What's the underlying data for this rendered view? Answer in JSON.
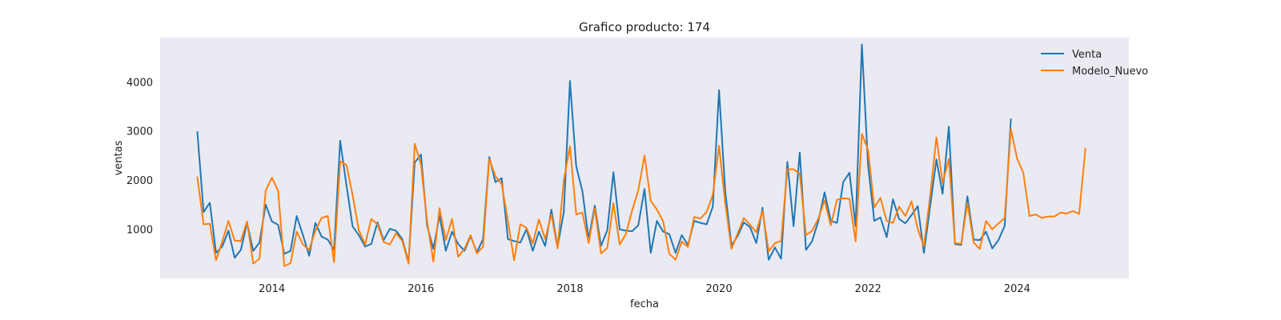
{
  "chart_data": {
    "type": "line",
    "title": "Grafico producto: 174",
    "xlabel": "fecha",
    "ylabel": "ventas",
    "xlim": [
      "2012-07-01",
      "2025-07-01"
    ],
    "ylim": [
      0,
      4900
    ],
    "x_ticks": [
      "2014",
      "2016",
      "2018",
      "2020",
      "2022",
      "2024"
    ],
    "y_ticks": [
      1000,
      2000,
      3000,
      4000
    ],
    "grid": false,
    "legend_position": "top-right",
    "background": "#eaeaf2",
    "series": [
      {
        "name": "Venta",
        "color": "#1f77b4",
        "start": "2013-01",
        "values": [
          2980,
          1350,
          1540,
          520,
          650,
          970,
          420,
          580,
          1130,
          560,
          730,
          1500,
          1160,
          1090,
          500,
          560,
          1270,
          880,
          460,
          1130,
          850,
          790,
          580,
          2800,
          1900,
          1060,
          880,
          650,
          700,
          1140,
          780,
          1010,
          970,
          800,
          330,
          2360,
          2520,
          1070,
          600,
          1280,
          560,
          950,
          700,
          560,
          860,
          530,
          800,
          2470,
          1960,
          2040,
          800,
          760,
          730,
          1000,
          560,
          950,
          660,
          1400,
          640,
          1350,
          4020,
          2280,
          1780,
          800,
          1480,
          660,
          980,
          2160,
          1000,
          970,
          960,
          1080,
          1820,
          520,
          1170,
          950,
          900,
          520,
          880,
          680,
          1170,
          1130,
          1100,
          1460,
          3830,
          1780,
          670,
          860,
          1140,
          1040,
          720,
          1440,
          380,
          630,
          400,
          2370,
          1060,
          2560,
          580,
          760,
          1170,
          1750,
          1170,
          1130,
          1960,
          2150,
          1060,
          4760,
          2310,
          1170,
          1240,
          840,
          1610,
          1210,
          1120,
          1290,
          1470,
          520,
          1470,
          2420,
          1720,
          3090,
          700,
          680,
          1670,
          790,
          780,
          950,
          610,
          780,
          1070,
          3240
        ]
      },
      {
        "name": "Modelo_Nuevo",
        "color": "#ff7f0e",
        "start": "2013-01",
        "values": [
          2060,
          1100,
          1110,
          370,
          750,
          1170,
          770,
          760,
          1160,
          300,
          400,
          1790,
          2050,
          1780,
          250,
          310,
          950,
          690,
          580,
          970,
          1230,
          1270,
          330,
          2380,
          2310,
          1700,
          980,
          690,
          1210,
          1100,
          740,
          690,
          920,
          760,
          300,
          2740,
          2320,
          1160,
          340,
          1430,
          780,
          1210,
          440,
          600,
          880,
          510,
          640,
          2430,
          2080,
          1920,
          1170,
          370,
          1100,
          1030,
          710,
          1200,
          800,
          1300,
          610,
          2000,
          2690,
          1300,
          1340,
          720,
          1420,
          510,
          620,
          1530,
          690,
          900,
          1380,
          1790,
          2500,
          1580,
          1400,
          1160,
          500,
          380,
          750,
          640,
          1250,
          1220,
          1350,
          1700,
          2700,
          1540,
          600,
          910,
          1230,
          1090,
          940,
          1380,
          550,
          720,
          760,
          2220,
          2220,
          2130,
          880,
          970,
          1220,
          1590,
          1080,
          1600,
          1630,
          1620,
          750,
          2940,
          2620,
          1440,
          1640,
          1170,
          1130,
          1460,
          1270,
          1570,
          1000,
          650,
          1690,
          2870,
          1940,
          2430,
          720,
          700,
          1540,
          730,
          600,
          1170,
          1000,
          1120,
          1230,
          3040,
          2440,
          2150,
          1270,
          1300,
          1230,
          1260,
          1260,
          1340,
          1320,
          1370,
          1310,
          2640
        ]
      }
    ]
  }
}
